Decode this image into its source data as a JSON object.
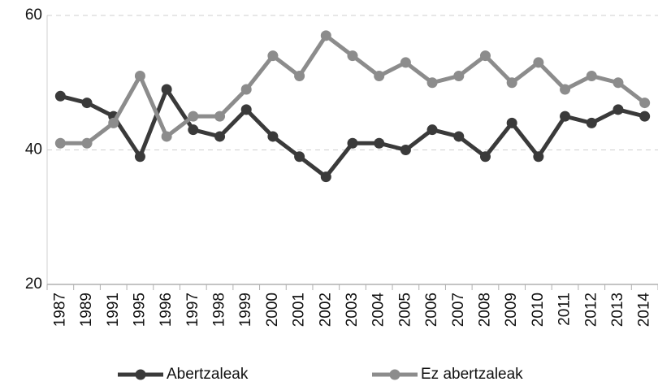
{
  "chart_data": {
    "type": "line",
    "categories": [
      "1987",
      "1989",
      "1991",
      "1995",
      "1996",
      "1997",
      "1998",
      "1999",
      "2000",
      "2001",
      "2002",
      "2003",
      "2004",
      "2005",
      "2006",
      "2007",
      "2008",
      "2009",
      "2010",
      "2011",
      "2012",
      "2013",
      "2014"
    ],
    "series": [
      {
        "name": "Abertzaleak",
        "color": "#3a3a3a",
        "values": [
          48,
          47,
          45,
          39,
          49,
          43,
          42,
          46,
          42,
          39,
          36,
          41,
          41,
          40,
          43,
          42,
          39,
          44,
          39,
          45,
          44,
          46,
          45
        ]
      },
      {
        "name": "Ez abertzaleak",
        "color": "#8c8c8c",
        "values": [
          41,
          41,
          44,
          51,
          42,
          45,
          45,
          49,
          54,
          51,
          57,
          54,
          51,
          53,
          50,
          51,
          54,
          50,
          53,
          49,
          51,
          50,
          47
        ]
      }
    ],
    "ylim": [
      20,
      60
    ],
    "yticks": [
      20,
      40,
      60
    ],
    "grid": true,
    "legend": "bottom"
  }
}
